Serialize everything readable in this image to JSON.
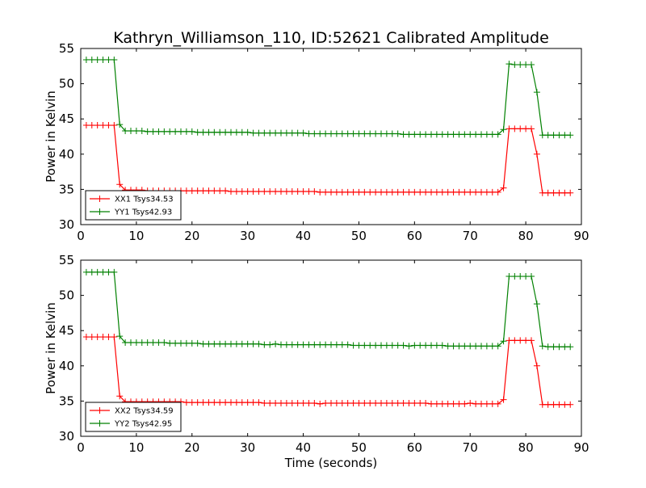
{
  "title": "Kathryn_Williamson_110, ID:52621 Calibrated Amplitude",
  "colors": {
    "xx": "#ff0000",
    "yy": "#008000"
  },
  "chart_data": [
    {
      "type": "line",
      "ylabel": "Power in Kelvin",
      "xlabel": "",
      "xlim": [
        0,
        90
      ],
      "ylim": [
        30,
        55
      ],
      "xticks": [
        0,
        10,
        20,
        30,
        40,
        50,
        60,
        70,
        80,
        90
      ],
      "yticks": [
        30,
        35,
        40,
        45,
        50,
        55
      ],
      "legend_position": "bottom-left",
      "marker": "plus",
      "series": [
        {
          "name": "XX1 Tsys34.53",
          "color": "#ff0000",
          "x": [
            1,
            2,
            3,
            4,
            5,
            6,
            7,
            8,
            9,
            10,
            11,
            12,
            13,
            14,
            15,
            16,
            17,
            18,
            19,
            20,
            21,
            22,
            23,
            24,
            25,
            26,
            27,
            28,
            29,
            30,
            31,
            32,
            33,
            34,
            35,
            36,
            37,
            38,
            39,
            40,
            41,
            42,
            43,
            44,
            45,
            46,
            47,
            48,
            49,
            50,
            51,
            52,
            53,
            54,
            55,
            56,
            57,
            58,
            59,
            60,
            61,
            62,
            63,
            64,
            65,
            66,
            67,
            68,
            69,
            70,
            71,
            72,
            73,
            74,
            75,
            76,
            77,
            78,
            79,
            80,
            81,
            82,
            83,
            84,
            85,
            86,
            87,
            88
          ],
          "y": [
            44.1,
            44.1,
            44.1,
            44.1,
            44.1,
            44.1,
            35.7,
            34.9,
            34.9,
            34.9,
            34.9,
            34.8,
            34.8,
            34.8,
            34.8,
            34.8,
            34.8,
            34.8,
            34.8,
            34.8,
            34.8,
            34.8,
            34.8,
            34.8,
            34.8,
            34.8,
            34.7,
            34.7,
            34.7,
            34.7,
            34.7,
            34.7,
            34.7,
            34.7,
            34.7,
            34.7,
            34.7,
            34.7,
            34.7,
            34.7,
            34.7,
            34.7,
            34.6,
            34.6,
            34.6,
            34.6,
            34.6,
            34.6,
            34.6,
            34.6,
            34.6,
            34.6,
            34.6,
            34.6,
            34.6,
            34.6,
            34.6,
            34.6,
            34.6,
            34.6,
            34.6,
            34.6,
            34.6,
            34.6,
            34.6,
            34.6,
            34.6,
            34.6,
            34.6,
            34.6,
            34.6,
            34.6,
            34.6,
            34.6,
            34.6,
            35.2,
            43.6,
            43.6,
            43.6,
            43.6,
            43.6,
            40.0,
            34.5,
            34.5,
            34.5,
            34.5,
            34.5,
            34.5
          ]
        },
        {
          "name": "YY1 Tsys42.93",
          "color": "#008000",
          "x": [
            1,
            2,
            3,
            4,
            5,
            6,
            7,
            8,
            9,
            10,
            11,
            12,
            13,
            14,
            15,
            16,
            17,
            18,
            19,
            20,
            21,
            22,
            23,
            24,
            25,
            26,
            27,
            28,
            29,
            30,
            31,
            32,
            33,
            34,
            35,
            36,
            37,
            38,
            39,
            40,
            41,
            42,
            43,
            44,
            45,
            46,
            47,
            48,
            49,
            50,
            51,
            52,
            53,
            54,
            55,
            56,
            57,
            58,
            59,
            60,
            61,
            62,
            63,
            64,
            65,
            66,
            67,
            68,
            69,
            70,
            71,
            72,
            73,
            74,
            75,
            76,
            77,
            78,
            79,
            80,
            81,
            82,
            83,
            84,
            85,
            86,
            87,
            88
          ],
          "y": [
            53.4,
            53.4,
            53.4,
            53.4,
            53.4,
            53.4,
            44.2,
            43.3,
            43.3,
            43.3,
            43.3,
            43.2,
            43.2,
            43.2,
            43.2,
            43.2,
            43.2,
            43.2,
            43.2,
            43.2,
            43.1,
            43.1,
            43.1,
            43.1,
            43.1,
            43.1,
            43.1,
            43.1,
            43.1,
            43.1,
            43.0,
            43.0,
            43.0,
            43.0,
            43.0,
            43.0,
            43.0,
            43.0,
            43.0,
            43.0,
            42.9,
            42.9,
            42.9,
            42.9,
            42.9,
            42.9,
            42.9,
            42.9,
            42.9,
            42.9,
            42.9,
            42.9,
            42.9,
            42.9,
            42.9,
            42.9,
            42.9,
            42.8,
            42.8,
            42.8,
            42.8,
            42.8,
            42.8,
            42.8,
            42.8,
            42.8,
            42.8,
            42.8,
            42.8,
            42.8,
            42.8,
            42.8,
            42.8,
            42.8,
            42.8,
            43.5,
            52.8,
            52.7,
            52.7,
            52.7,
            52.7,
            48.8,
            42.7,
            42.7,
            42.7,
            42.7,
            42.7,
            42.7
          ]
        }
      ]
    },
    {
      "type": "line",
      "ylabel": "Power in Kelvin",
      "xlabel": "Time (seconds)",
      "xlim": [
        0,
        90
      ],
      "ylim": [
        30,
        55
      ],
      "xticks": [
        0,
        10,
        20,
        30,
        40,
        50,
        60,
        70,
        80,
        90
      ],
      "yticks": [
        30,
        35,
        40,
        45,
        50,
        55
      ],
      "legend_position": "bottom-left",
      "marker": "plus",
      "series": [
        {
          "name": "XX2 Tsys34.59",
          "color": "#ff0000",
          "x": [
            1,
            2,
            3,
            4,
            5,
            6,
            7,
            8,
            9,
            10,
            11,
            12,
            13,
            14,
            15,
            16,
            17,
            18,
            19,
            20,
            21,
            22,
            23,
            24,
            25,
            26,
            27,
            28,
            29,
            30,
            31,
            32,
            33,
            34,
            35,
            36,
            37,
            38,
            39,
            40,
            41,
            42,
            43,
            44,
            45,
            46,
            47,
            48,
            49,
            50,
            51,
            52,
            53,
            54,
            55,
            56,
            57,
            58,
            59,
            60,
            61,
            62,
            63,
            64,
            65,
            66,
            67,
            68,
            69,
            70,
            71,
            72,
            73,
            74,
            75,
            76,
            77,
            78,
            79,
            80,
            81,
            82,
            83,
            84,
            85,
            86,
            87,
            88
          ],
          "y": [
            44.1,
            44.1,
            44.1,
            44.1,
            44.1,
            44.1,
            35.7,
            34.9,
            34.9,
            34.9,
            34.9,
            34.9,
            34.9,
            34.9,
            34.9,
            34.9,
            34.9,
            34.9,
            34.8,
            34.8,
            34.8,
            34.8,
            34.8,
            34.8,
            34.8,
            34.8,
            34.8,
            34.8,
            34.8,
            34.8,
            34.8,
            34.8,
            34.7,
            34.7,
            34.7,
            34.7,
            34.7,
            34.7,
            34.7,
            34.7,
            34.7,
            34.7,
            34.6,
            34.7,
            34.7,
            34.7,
            34.7,
            34.7,
            34.7,
            34.7,
            34.7,
            34.7,
            34.7,
            34.7,
            34.7,
            34.7,
            34.7,
            34.7,
            34.7,
            34.7,
            34.7,
            34.7,
            34.6,
            34.6,
            34.6,
            34.6,
            34.6,
            34.6,
            34.6,
            34.7,
            34.6,
            34.6,
            34.6,
            34.6,
            34.6,
            35.2,
            43.6,
            43.6,
            43.6,
            43.6,
            43.6,
            40.0,
            34.5,
            34.5,
            34.5,
            34.5,
            34.5,
            34.5
          ]
        },
        {
          "name": "YY2 Tsys42.95",
          "color": "#008000",
          "x": [
            1,
            2,
            3,
            4,
            5,
            6,
            7,
            8,
            9,
            10,
            11,
            12,
            13,
            14,
            15,
            16,
            17,
            18,
            19,
            20,
            21,
            22,
            23,
            24,
            25,
            26,
            27,
            28,
            29,
            30,
            31,
            32,
            33,
            34,
            35,
            36,
            37,
            38,
            39,
            40,
            41,
            42,
            43,
            44,
            45,
            46,
            47,
            48,
            49,
            50,
            51,
            52,
            53,
            54,
            55,
            56,
            57,
            58,
            59,
            60,
            61,
            62,
            63,
            64,
            65,
            66,
            67,
            68,
            69,
            70,
            71,
            72,
            73,
            74,
            75,
            76,
            77,
            78,
            79,
            80,
            81,
            82,
            83,
            84,
            85,
            86,
            87,
            88
          ],
          "y": [
            53.3,
            53.3,
            53.3,
            53.3,
            53.3,
            53.3,
            44.2,
            43.3,
            43.3,
            43.3,
            43.3,
            43.3,
            43.3,
            43.3,
            43.3,
            43.2,
            43.2,
            43.2,
            43.2,
            43.2,
            43.2,
            43.1,
            43.1,
            43.1,
            43.1,
            43.1,
            43.1,
            43.1,
            43.1,
            43.1,
            43.1,
            43.1,
            43.0,
            43.0,
            43.1,
            43.0,
            43.0,
            43.0,
            43.0,
            43.0,
            43.0,
            43.0,
            43.0,
            43.0,
            43.0,
            43.0,
            43.0,
            43.0,
            42.9,
            42.9,
            42.9,
            42.9,
            42.9,
            42.9,
            42.9,
            42.9,
            42.9,
            42.9,
            42.8,
            42.9,
            42.9,
            42.9,
            42.9,
            42.9,
            42.9,
            42.8,
            42.8,
            42.8,
            42.8,
            42.8,
            42.8,
            42.8,
            42.8,
            42.8,
            42.8,
            43.5,
            52.7,
            52.7,
            52.7,
            52.7,
            52.7,
            48.8,
            42.8,
            42.7,
            42.7,
            42.7,
            42.7,
            42.7
          ]
        }
      ]
    }
  ]
}
